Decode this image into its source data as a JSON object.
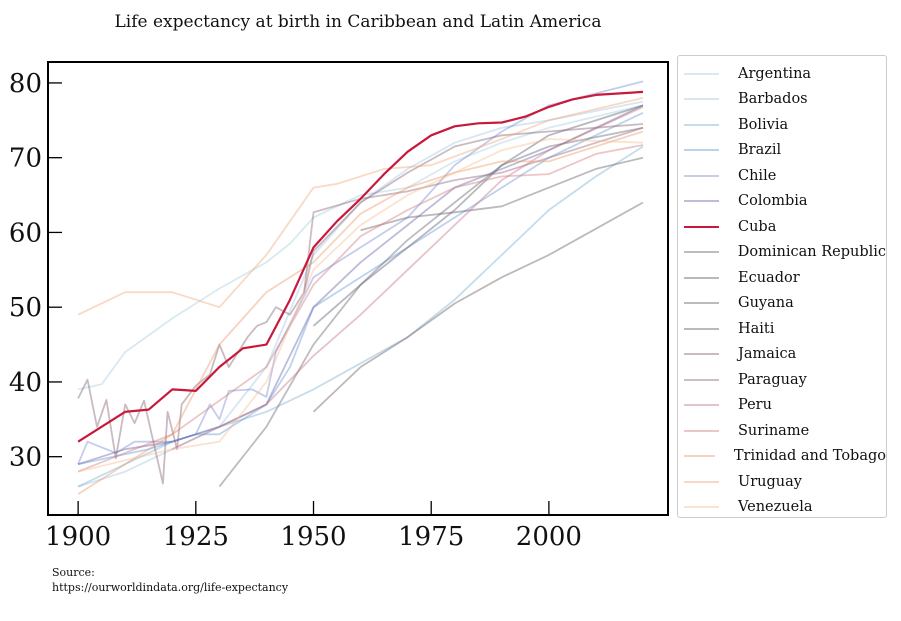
{
  "chart_data": {
    "type": "line",
    "title": "Life expectancy at birth in Caribbean and Latin America",
    "xlabel": "",
    "ylabel": "",
    "xlim": [
      1893.6,
      2025.3
    ],
    "ylim": [
      22.2,
      82.8
    ],
    "xticks": [
      1900,
      1925,
      1950,
      1975,
      2000
    ],
    "yticks": [
      30,
      40,
      50,
      60,
      70,
      80
    ],
    "grid": false,
    "legend_position": "outside-right",
    "series": [
      {
        "name": "Argentina",
        "color": "#8cc3d6",
        "opacity": 0.35,
        "x": [
          1900,
          1905,
          1910,
          1920,
          1930,
          1940,
          1945,
          1950,
          1960,
          1970,
          1980,
          1990,
          2000,
          2020
        ],
        "y": [
          39,
          39.7,
          44,
          48.5,
          52.5,
          56,
          58.5,
          62,
          65,
          66,
          69.5,
          72,
          74,
          77
        ]
      },
      {
        "name": "Barbados",
        "color": "#8ab8dc",
        "opacity": 0.35,
        "x": [
          1900,
          1910,
          1920,
          1930,
          1940,
          1950,
          1960,
          1970,
          1980,
          1990,
          2000,
          2020
        ],
        "y": [
          26,
          28,
          31,
          34,
          42,
          57,
          64,
          68.5,
          72,
          74,
          75,
          77.5
        ]
      },
      {
        "name": "Bolivia",
        "color": "#6fa8cc",
        "opacity": 0.4,
        "x": [
          1900,
          1920,
          1940,
          1950,
          1960,
          1970,
          1980,
          1990,
          2000,
          2010,
          2020
        ],
        "y": [
          26,
          32,
          36,
          39,
          42.5,
          46,
          51,
          57,
          63,
          67.5,
          71.5
        ]
      },
      {
        "name": "Brazil",
        "color": "#5b8fd6",
        "opacity": 0.4,
        "x": [
          1900,
          1915,
          1925,
          1930,
          1940,
          1945,
          1950,
          1960,
          1970,
          1980,
          1990,
          2000,
          2020
        ],
        "y": [
          29,
          31,
          33,
          33,
          37,
          42,
          50,
          54,
          58,
          62,
          66,
          70,
          76
        ]
      },
      {
        "name": "Chile",
        "color": "#6d7fcf",
        "opacity": 0.4,
        "x": [
          1900,
          1902,
          1908,
          1912,
          1920,
          1925,
          1928,
          1930,
          1932,
          1937,
          1940,
          1942,
          1950,
          1960,
          1970,
          1980,
          1990,
          2000,
          2020
        ],
        "y": [
          29,
          32,
          30.5,
          32,
          32,
          33,
          37,
          35,
          38.8,
          39,
          38,
          44,
          54,
          58,
          62,
          69,
          73.5,
          77,
          80.2
        ]
      },
      {
        "name": "Colombia",
        "color": "#6c6aaa",
        "opacity": 0.45,
        "x": [
          1900,
          1910,
          1920,
          1930,
          1940,
          1950,
          1960,
          1970,
          1980,
          1990,
          2000,
          2020
        ],
        "y": [
          29,
          31,
          32,
          34,
          37,
          50,
          56,
          61,
          66,
          68.5,
          71,
          77
        ]
      },
      {
        "name": "Cuba",
        "color": "#c8193c",
        "opacity": 1,
        "x": [
          1900,
          1910,
          1915,
          1920,
          1925,
          1930,
          1935,
          1940,
          1945,
          1950,
          1955,
          1960,
          1965,
          1970,
          1975,
          1980,
          1985,
          1990,
          1995,
          2000,
          2005,
          2010,
          2020
        ],
        "y": [
          32,
          36,
          36.3,
          39,
          38.8,
          42,
          44.5,
          45,
          51,
          58,
          61.5,
          64.5,
          67.8,
          70.8,
          73,
          74.2,
          74.6,
          74.7,
          75.5,
          76.8,
          77.8,
          78.4,
          78.8
        ]
      },
      {
        "name": "Dominican Republic",
        "color": "#6b6b78",
        "opacity": 0.45,
        "x": [
          1930,
          1940,
          1950,
          1960,
          1970,
          1980,
          1990,
          2000,
          2020
        ],
        "y": [
          26,
          34,
          45,
          53,
          59,
          64,
          69,
          71.5,
          74
        ]
      },
      {
        "name": "Ecuador",
        "color": "#626270",
        "opacity": 0.45,
        "x": [
          1950,
          1960,
          1970,
          1980,
          1990,
          2000,
          2020
        ],
        "y": [
          47.5,
          53,
          58,
          63,
          69,
          73,
          77
        ]
      },
      {
        "name": "Guyana",
        "color": "#656570",
        "opacity": 0.45,
        "x": [
          1960,
          1970,
          1980,
          1990,
          2000,
          2010,
          2020
        ],
        "y": [
          60.3,
          62,
          62.7,
          63.5,
          66,
          68.5,
          70
        ]
      },
      {
        "name": "Haiti",
        "color": "#6c6468",
        "opacity": 0.45,
        "x": [
          1950,
          1955,
          1960,
          1970,
          1980,
          1990,
          2000,
          2010,
          2020
        ],
        "y": [
          36,
          39,
          42,
          46,
          50.5,
          54,
          57,
          60.5,
          64
        ]
      },
      {
        "name": "Jamaica",
        "color": "#8a6575",
        "opacity": 0.45,
        "x": [
          1900,
          1902,
          1904,
          1906,
          1908,
          1910,
          1912,
          1914,
          1918,
          1919,
          1921,
          1922,
          1925,
          1928,
          1930,
          1932,
          1934,
          1936,
          1938,
          1940,
          1942,
          1945,
          1948,
          1950,
          1960,
          1970,
          1980,
          1990,
          2000,
          2020
        ],
        "y": [
          37.8,
          40.3,
          34,
          37.6,
          29.8,
          37,
          34.5,
          37.5,
          26.4,
          36,
          31,
          37,
          39.5,
          41,
          45,
          42,
          44,
          46,
          47.5,
          48,
          50,
          49,
          52,
          57.5,
          64,
          68,
          71.5,
          73,
          73.5,
          74.5
        ]
      },
      {
        "name": "Paraguay",
        "color": "#9a6a7c",
        "opacity": 0.45,
        "x": [
          1948,
          1950,
          1960,
          1970,
          1980,
          1990,
          2000,
          2020
        ],
        "y": [
          52,
          62.7,
          64.5,
          65.5,
          67,
          68,
          70,
          74
        ]
      },
      {
        "name": "Peru",
        "color": "#c06a7a",
        "opacity": 0.4,
        "x": [
          1920,
          1940,
          1950,
          1960,
          1970,
          1980,
          1990,
          2000,
          2020
        ],
        "y": [
          31,
          37,
          43.5,
          49,
          55,
          61,
          67,
          71,
          76.8
        ]
      },
      {
        "name": "Suriname",
        "color": "#d07070",
        "opacity": 0.4,
        "x": [
          1900,
          1920,
          1940,
          1950,
          1960,
          1970,
          1980,
          1990,
          2000,
          2010,
          2020
        ],
        "y": [
          28,
          33,
          42,
          53,
          59.5,
          63,
          66,
          67.5,
          67.8,
          70.5,
          71.7
        ]
      },
      {
        "name": "Trinidad and Tobago",
        "color": "#e8905c",
        "opacity": 0.4,
        "x": [
          1900,
          1920,
          1930,
          1940,
          1950,
          1960,
          1970,
          1980,
          1990,
          2000,
          2020
        ],
        "y": [
          25,
          33,
          45,
          52,
          56,
          62.5,
          66,
          68,
          69.5,
          69.5,
          73.5
        ]
      },
      {
        "name": "Uruguay",
        "color": "#f0a070",
        "opacity": 0.4,
        "x": [
          1900,
          1910,
          1920,
          1930,
          1940,
          1950,
          1955,
          1965,
          1975,
          1990,
          2000,
          2020
        ],
        "y": [
          49,
          52,
          52,
          50,
          57,
          66,
          66.5,
          68.5,
          69,
          72.5,
          75,
          78
        ]
      },
      {
        "name": "Venezuela",
        "color": "#f5b888",
        "opacity": 0.4,
        "x": [
          1900,
          1920,
          1930,
          1940,
          1950,
          1960,
          1970,
          1980,
          1990,
          2000,
          2020
        ],
        "y": [
          28,
          31,
          32,
          40,
          55,
          61,
          65,
          68,
          71,
          72.5,
          72
        ]
      }
    ]
  },
  "source": {
    "label": "Source:",
    "url": "https://ourworldindata.org/life-expectancy"
  }
}
